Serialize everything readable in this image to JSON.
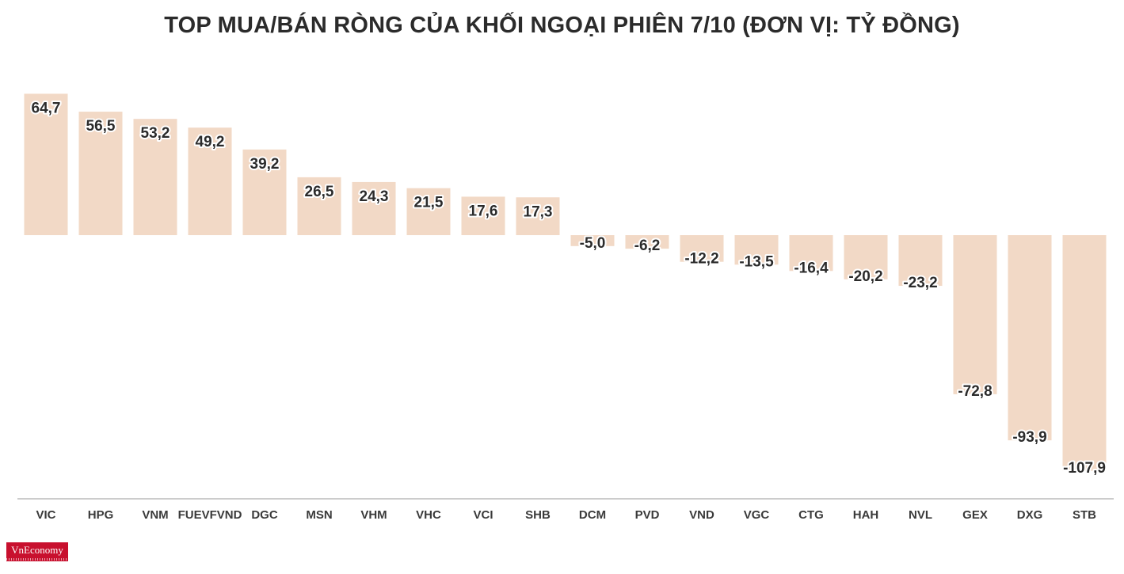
{
  "chart_data": {
    "type": "bar",
    "title": "TOP MUA/BÁN RÒNG CỦA KHỐI NGOẠI PHIÊN 7/10 (ĐƠN VỊ: TỶ ĐỒNG)",
    "xlabel": "",
    "ylabel": "",
    "categories": [
      "VIC",
      "HPG",
      "VNM",
      "FUEVFVND",
      "DGC",
      "MSN",
      "VHM",
      "VHC",
      "VCI",
      "SHB",
      "DCM",
      "PVD",
      "VND",
      "VGC",
      "CTG",
      "HAH",
      "NVL",
      "GEX",
      "DXG",
      "STB"
    ],
    "values": [
      64.7,
      56.5,
      53.2,
      49.2,
      39.2,
      26.5,
      24.3,
      21.5,
      17.6,
      17.3,
      -5.0,
      -6.2,
      -12.2,
      -13.5,
      -16.4,
      -20.2,
      -23.2,
      -72.8,
      -93.9,
      -107.9
    ],
    "value_labels": [
      "64,7",
      "56,5",
      "53,2",
      "49,2",
      "39,2",
      "26,5",
      "24,3",
      "21,5",
      "17,6",
      "17,3",
      "-5,0",
      "-6,2",
      "-12,2",
      "-13,5",
      "-16,4",
      "-20,2",
      "-23,2",
      "-72,8",
      "-93,9",
      "-107,9"
    ],
    "ylim": [
      -120,
      65
    ],
    "grid": false,
    "legend": "none",
    "bar_color": "#f2d9c6",
    "axis_color": "#999999"
  },
  "logo": {
    "text": "VnEconomy"
  }
}
